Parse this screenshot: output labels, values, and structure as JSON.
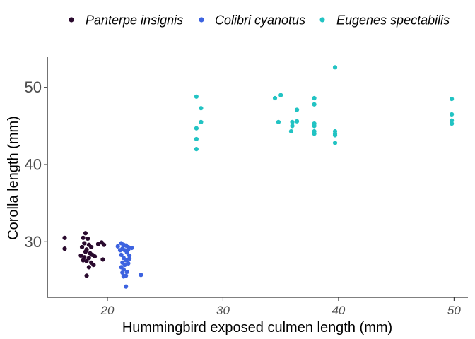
{
  "chart_data": {
    "type": "scatter",
    "xlabel": "Hummingbird exposed culmen length (mm)",
    "ylabel": "Corolla length (mm)",
    "xlim": [
      14.8,
      51.2
    ],
    "ylim": [
      22.8,
      54.0
    ],
    "x_ticks": [
      20,
      30,
      40,
      50
    ],
    "y_ticks": [
      30,
      40,
      50
    ],
    "grid": false,
    "legend_position": "top",
    "series": [
      {
        "name": "Panterpe insignis",
        "color": "#2a0a2e",
        "points": [
          [
            16.3,
            30.5
          ],
          [
            16.3,
            29.1
          ],
          [
            17.9,
            30.5
          ],
          [
            18.1,
            31.1
          ],
          [
            18.3,
            30.4
          ],
          [
            18.0,
            29.8
          ],
          [
            18.4,
            29.6
          ],
          [
            17.8,
            29.3
          ],
          [
            18.2,
            29.0
          ],
          [
            18.6,
            29.3
          ],
          [
            18.1,
            28.7
          ],
          [
            18.5,
            28.5
          ],
          [
            17.7,
            28.2
          ],
          [
            18.0,
            28.0
          ],
          [
            18.4,
            27.9
          ],
          [
            18.7,
            28.3
          ],
          [
            18.2,
            27.5
          ],
          [
            18.6,
            27.3
          ],
          [
            18.8,
            27.0
          ],
          [
            18.4,
            26.7
          ],
          [
            18.2,
            25.6
          ],
          [
            17.9,
            27.6
          ],
          [
            18.9,
            28.1
          ],
          [
            19.2,
            29.7
          ],
          [
            19.5,
            29.9
          ],
          [
            19.7,
            29.6
          ],
          [
            19.6,
            27.7
          ]
        ]
      },
      {
        "name": "Colibri cyanotus",
        "color": "#3d63e0",
        "points": [
          [
            20.9,
            29.4
          ],
          [
            21.2,
            29.8
          ],
          [
            21.4,
            29.6
          ],
          [
            21.6,
            29.5
          ],
          [
            21.8,
            29.3
          ],
          [
            21.3,
            29.1
          ],
          [
            22.1,
            29.2
          ],
          [
            21.5,
            28.9
          ],
          [
            21.7,
            28.6
          ],
          [
            21.2,
            28.3
          ],
          [
            21.9,
            28.2
          ],
          [
            21.4,
            27.9
          ],
          [
            21.6,
            27.6
          ],
          [
            21.3,
            27.3
          ],
          [
            21.8,
            27.2
          ],
          [
            21.5,
            27.0
          ],
          [
            21.2,
            26.7
          ],
          [
            21.4,
            26.4
          ],
          [
            21.7,
            26.1
          ],
          [
            21.3,
            26.0
          ],
          [
            21.6,
            25.6
          ],
          [
            21.4,
            25.5
          ],
          [
            22.9,
            25.7
          ],
          [
            21.6,
            24.2
          ],
          [
            21.9,
            27.8
          ],
          [
            21.1,
            28.9
          ],
          [
            21.8,
            29.0
          ]
        ]
      },
      {
        "name": "Eugenes spectabilis",
        "color": "#22c3c3",
        "points": [
          [
            27.7,
            48.8
          ],
          [
            28.1,
            47.3
          ],
          [
            28.1,
            45.5
          ],
          [
            27.7,
            44.7
          ],
          [
            27.7,
            43.3
          ],
          [
            27.7,
            42.0
          ],
          [
            34.5,
            48.6
          ],
          [
            35.0,
            49.0
          ],
          [
            34.8,
            45.5
          ],
          [
            36.0,
            45.5
          ],
          [
            36.0,
            45.0
          ],
          [
            36.4,
            47.1
          ],
          [
            36.4,
            45.6
          ],
          [
            35.9,
            44.3
          ],
          [
            37.9,
            48.6
          ],
          [
            37.9,
            47.8
          ],
          [
            37.9,
            45.3
          ],
          [
            37.9,
            45.0
          ],
          [
            37.9,
            44.3
          ],
          [
            37.9,
            44.0
          ],
          [
            39.7,
            52.6
          ],
          [
            39.7,
            44.3
          ],
          [
            39.7,
            44.0
          ],
          [
            39.7,
            43.8
          ],
          [
            39.7,
            42.8
          ],
          [
            49.8,
            48.5
          ],
          [
            49.8,
            46.5
          ],
          [
            49.8,
            45.7
          ],
          [
            49.8,
            45.3
          ]
        ]
      }
    ]
  }
}
